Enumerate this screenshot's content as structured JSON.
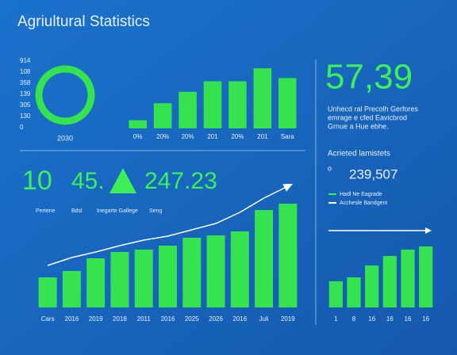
{
  "header": {
    "title": "Agriultural Statistics"
  },
  "kpis": {
    "main": "57,39",
    "main_caption": [
      "Unhecd ral Precolh Gerfores",
      "emrage e cfed Eavicbrod",
      "Grnue a Hue ebhe."
    ],
    "gauge": "10",
    "left": "45.",
    "right": "247.23",
    "sub_labels": [
      "Pertene",
      "Bdsl",
      "Inegarte Gallege",
      "Seng"
    ],
    "panel_title": "Acrieted lamistets",
    "panel_bullet": "o",
    "panel_value": "239,507",
    "legend": [
      "Hadl Ne Eagrade",
      "Acchesle Bandgent"
    ]
  },
  "chart_data": [
    {
      "type": "donut",
      "values": [
        100
      ],
      "color": "#35e24f",
      "label": "2030",
      "side_labels": [
        "914",
        "108",
        "358",
        "139",
        "305",
        "130",
        "0"
      ]
    },
    {
      "type": "bar",
      "categories": [
        "0%",
        "20%",
        "20%",
        "201",
        "20%",
        "201",
        "Sara"
      ],
      "values": [
        10,
        31,
        45,
        58,
        58,
        74,
        62
      ],
      "ylim": [
        0,
        80
      ],
      "color": "#35e24f"
    },
    {
      "type": "bar",
      "categories": [
        "Cars",
        "2016",
        "2019",
        "2018",
        "2011",
        "2016",
        "2025",
        "2026",
        "2016",
        "Juli",
        "2019"
      ],
      "values": [
        38,
        46,
        62,
        70,
        73,
        78,
        88,
        91,
        96,
        123,
        131
      ],
      "line_values": [
        53,
        63,
        70,
        78,
        85,
        90,
        98,
        106,
        120,
        138,
        153
      ],
      "ylim": [
        0,
        170
      ],
      "color": "#35e24f",
      "line_color": "#ffffff"
    },
    {
      "type": "bar",
      "categories": [
        "1",
        "8",
        "16",
        "16",
        "16",
        "16"
      ],
      "values": [
        33,
        38,
        53,
        65,
        73,
        77
      ],
      "ylim": [
        0,
        88
      ],
      "color": "#35e24f"
    }
  ]
}
